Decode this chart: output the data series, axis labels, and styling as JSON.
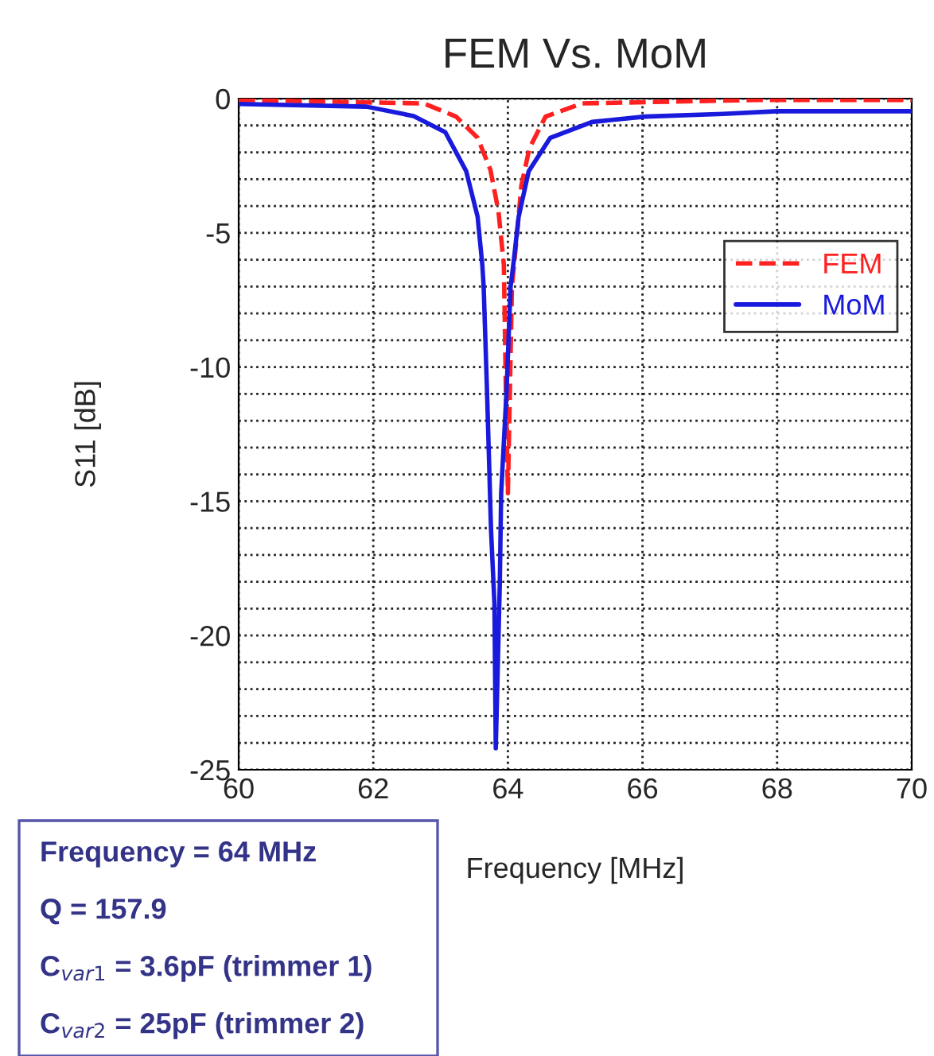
{
  "chart_data": {
    "type": "line",
    "title": "FEM Vs. MoM",
    "xlabel": "Frequency [MHz]",
    "ylabel": "S11 [dB]",
    "xlim": [
      60,
      70
    ],
    "xticks": [
      60,
      62,
      64,
      66,
      68,
      70
    ],
    "ylim": [
      -25,
      0
    ],
    "yticks": [
      0,
      {
        "value": -1,
        "label": null
      },
      {
        "value": -2,
        "label": null
      },
      {
        "value": -3,
        "label": null
      },
      {
        "value": -4,
        "label": null
      },
      -5,
      {
        "value": -6,
        "label": null
      },
      {
        "value": -7,
        "label": null
      },
      {
        "value": -8,
        "label": null
      },
      {
        "value": -9,
        "label": null
      },
      -10,
      {
        "value": -11,
        "label": null
      },
      {
        "value": -12,
        "label": null
      },
      {
        "value": -13,
        "label": null
      },
      {
        "value": -14,
        "label": null
      },
      -15,
      {
        "value": -16,
        "label": null
      },
      {
        "value": -17,
        "label": null
      },
      {
        "value": -18,
        "label": null
      },
      {
        "value": -19,
        "label": null
      },
      -20,
      {
        "value": -21,
        "label": null
      },
      {
        "value": -22,
        "label": null
      },
      {
        "value": -23,
        "label": null
      },
      {
        "value": -24,
        "label": null
      },
      -25
    ],
    "grid": true,
    "legend": "right",
    "series": [
      {
        "name": "FEM",
        "color": "#ff2020",
        "line_style": "dashed",
        "x": [
          60,
          62.75,
          63.23,
          63.55,
          63.74,
          63.86,
          63.94,
          63.97,
          64.0,
          64.03,
          64.06,
          64.13,
          64.2,
          64.32,
          64.56,
          65.1,
          67.7,
          70
        ],
        "values": [
          -0.05,
          -0.18,
          -0.67,
          -1.46,
          -2.65,
          -4.2,
          -6.2,
          -10.9,
          -14.7,
          -10.9,
          -7.0,
          -5.2,
          -3.24,
          -1.85,
          -0.67,
          -0.18,
          -0.05,
          -0.05
        ]
      },
      {
        "name": "MoM",
        "color": "#1a1adc",
        "line_style": "solid",
        "x": [
          60,
          61.9,
          62.6,
          63.07,
          63.38,
          63.55,
          63.62,
          63.64,
          63.69,
          63.75,
          63.8,
          63.82,
          63.88,
          63.9,
          63.98,
          64.04,
          64.08,
          64.16,
          64.31,
          64.63,
          65.25,
          66.04,
          67.2,
          68,
          70
        ],
        "values": [
          -0.2,
          -0.3,
          -0.65,
          -1.25,
          -2.7,
          -4.4,
          -6.2,
          -7.0,
          -10.9,
          -16.1,
          -18.8,
          -24.2,
          -18.05,
          -14.7,
          -10.9,
          -7.0,
          -6.2,
          -4.4,
          -2.7,
          -1.46,
          -0.87,
          -0.67,
          -0.57,
          -0.47,
          -0.47
        ]
      }
    ],
    "annotations": [
      "Frequency = 64 MHz",
      "Q = 157.9",
      "C$_{var1}$ = 3.6pF (trimmer 1)",
      "C$_{var2}$ = 25pF (trimmer 2)"
    ]
  }
}
